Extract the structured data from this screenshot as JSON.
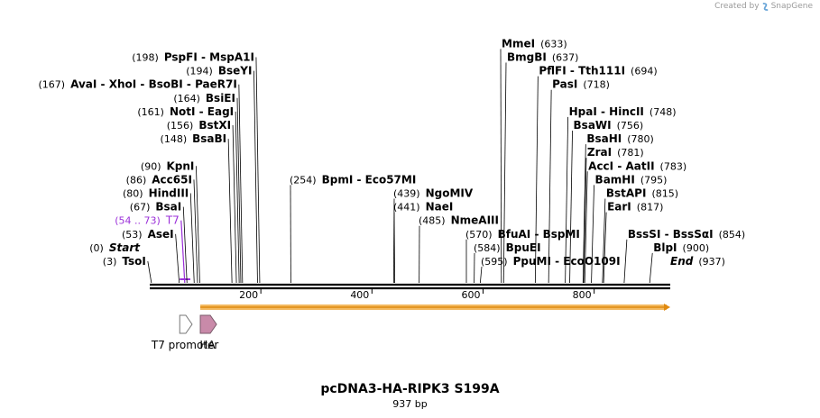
{
  "credit": {
    "prefix": "Created by",
    "brand": "SnapGene"
  },
  "plasmid": {
    "name": "pcDNA3-HA-RIPK3 S199A",
    "length_label": "937 bp",
    "length": 937
  },
  "colors": {
    "accent": "#9b30d9",
    "orf_fill": "#f3b95f",
    "orf_stroke": "#e08a10",
    "ha_fill": "#c98aa9",
    "line": "#7a7a7a"
  },
  "ruler": {
    "ticks": [
      200,
      400,
      600,
      800
    ]
  },
  "sites": [
    {
      "id": "tsoi",
      "names": [
        "TsoI"
      ],
      "pos": "(3)",
      "bp": 3,
      "row": 0,
      "kind": "enzyme"
    },
    {
      "id": "start",
      "names": [
        "Start"
      ],
      "pos": "(0)",
      "bp": 0,
      "row": 1,
      "kind": "terminal"
    },
    {
      "id": "asei",
      "names": [
        "AseI"
      ],
      "pos": "(53)",
      "bp": 53,
      "row": 2,
      "kind": "enzyme"
    },
    {
      "id": "t7",
      "names": [
        "T7"
      ],
      "pos": "(54 .. 73)",
      "bp": 63,
      "row": 3,
      "kind": "primer"
    },
    {
      "id": "bsai",
      "names": [
        "BsaI"
      ],
      "pos": "(67)",
      "bp": 67,
      "row": 4,
      "kind": "enzyme"
    },
    {
      "id": "hindiii",
      "names": [
        "HindIII"
      ],
      "pos": "(80)",
      "bp": 80,
      "row": 5,
      "kind": "enzyme"
    },
    {
      "id": "acc65i",
      "names": [
        "Acc65I"
      ],
      "pos": "(86)",
      "bp": 86,
      "row": 6,
      "kind": "enzyme"
    },
    {
      "id": "kpni",
      "names": [
        "KpnI"
      ],
      "pos": "(90)",
      "bp": 90,
      "row": 7,
      "kind": "enzyme"
    },
    {
      "id": "bsabi",
      "names": [
        "BsaBI"
      ],
      "pos": "(148)",
      "bp": 148,
      "row": 9,
      "kind": "enzyme"
    },
    {
      "id": "bstxi",
      "names": [
        "BstXI"
      ],
      "pos": "(156)",
      "bp": 156,
      "row": 10,
      "kind": "enzyme"
    },
    {
      "id": "notieagi",
      "names": [
        "NotI",
        "EagI"
      ],
      "pos": "(161)",
      "bp": 161,
      "row": 11,
      "kind": "enzyme"
    },
    {
      "id": "bsiei",
      "names": [
        "BsiEI"
      ],
      "pos": "(164)",
      "bp": 164,
      "row": 12,
      "kind": "enzyme"
    },
    {
      "id": "avaigroup",
      "names": [
        "AvaI",
        "XhoI",
        "BsoBI",
        "PaeR7I"
      ],
      "pos": "(167)",
      "bp": 167,
      "row": 13,
      "kind": "enzyme"
    },
    {
      "id": "bseyi",
      "names": [
        "BseYI"
      ],
      "pos": "(194)",
      "bp": 194,
      "row": 14,
      "kind": "enzyme"
    },
    {
      "id": "pspfi",
      "names": [
        "PspFI",
        "MspA1I"
      ],
      "pos": "(198)",
      "bp": 198,
      "row": 15,
      "kind": "enzyme"
    },
    {
      "id": "bpmi",
      "names": [
        "BpmI",
        "Eco57MI"
      ],
      "pos": "(254)",
      "bp": 254,
      "row": 6,
      "kind": "enzyme"
    },
    {
      "id": "ngomiv",
      "names": [
        "NgoMIV"
      ],
      "pos": "(439)",
      "bp": 439,
      "row": 5,
      "kind": "enzyme"
    },
    {
      "id": "naei",
      "names": [
        "NaeI"
      ],
      "pos": "(441)",
      "bp": 441,
      "row": 4,
      "kind": "enzyme"
    },
    {
      "id": "nmeaiii",
      "names": [
        "NmeAIII"
      ],
      "pos": "(485)",
      "bp": 485,
      "row": 3,
      "kind": "enzyme"
    },
    {
      "id": "bfuai",
      "names": [
        "BfuAI",
        "BspMI"
      ],
      "pos": "(570)",
      "bp": 570,
      "row": 2,
      "kind": "enzyme"
    },
    {
      "id": "bpuei",
      "names": [
        "BpuEI"
      ],
      "pos": "(584)",
      "bp": 584,
      "row": 1,
      "kind": "enzyme"
    },
    {
      "id": "ppumi",
      "names": [
        "PpuMI",
        "EcoO109I"
      ],
      "pos": "(595)",
      "bp": 595,
      "row": 0,
      "kind": "enzyme"
    },
    {
      "id": "mmei",
      "names": [
        "MmeI"
      ],
      "pos": "(633)",
      "bp": 633,
      "row": 16,
      "kind": "enzyme"
    },
    {
      "id": "bmgbi",
      "names": [
        "BmgBI"
      ],
      "pos": "(637)",
      "bp": 637,
      "row": 15,
      "kind": "enzyme"
    },
    {
      "id": "pflfi",
      "names": [
        "PflFI",
        "Tth111I"
      ],
      "pos": "(694)",
      "bp": 694,
      "row": 14,
      "kind": "enzyme"
    },
    {
      "id": "pasi",
      "names": [
        "PasI"
      ],
      "pos": "(718)",
      "bp": 718,
      "row": 13,
      "kind": "enzyme"
    },
    {
      "id": "hpai",
      "names": [
        "HpaI",
        "HincII"
      ],
      "pos": "(748)",
      "bp": 748,
      "row": 11,
      "kind": "enzyme"
    },
    {
      "id": "bsawi",
      "names": [
        "BsaWI"
      ],
      "pos": "(756)",
      "bp": 756,
      "row": 10,
      "kind": "enzyme"
    },
    {
      "id": "bsahi",
      "names": [
        "BsaHI"
      ],
      "pos": "(780)",
      "bp": 780,
      "row": 9,
      "kind": "enzyme"
    },
    {
      "id": "zrai",
      "names": [
        "ZraI"
      ],
      "pos": "(781)",
      "bp": 781,
      "row": 8,
      "kind": "enzyme"
    },
    {
      "id": "acci",
      "names": [
        "AccI",
        "AatII"
      ],
      "pos": "(783)",
      "bp": 783,
      "row": 7,
      "kind": "enzyme"
    },
    {
      "id": "bamhi",
      "names": [
        "BamHI"
      ],
      "pos": "(795)",
      "bp": 795,
      "row": 6,
      "kind": "enzyme"
    },
    {
      "id": "bstapi",
      "names": [
        "BstAPI"
      ],
      "pos": "(815)",
      "bp": 815,
      "row": 5,
      "kind": "enzyme"
    },
    {
      "id": "eari",
      "names": [
        "EarI"
      ],
      "pos": "(817)",
      "bp": 817,
      "row": 4,
      "kind": "enzyme"
    },
    {
      "id": "bsssi",
      "names": [
        "BssSI",
        "BssSαI"
      ],
      "pos": "(854)",
      "bp": 854,
      "row": 2,
      "kind": "enzyme"
    },
    {
      "id": "blpi",
      "names": [
        "BlpI"
      ],
      "pos": "(900)",
      "bp": 900,
      "row": 1,
      "kind": "enzyme"
    },
    {
      "id": "end",
      "names": [
        "End"
      ],
      "pos": "(937)",
      "bp": 937,
      "row": 0,
      "kind": "terminal"
    }
  ],
  "features": [
    {
      "id": "t7promoter",
      "label": "T7 promoter",
      "start": 54,
      "end": 73,
      "type": "promoter"
    },
    {
      "id": "ha",
      "label": "HA",
      "start": 91,
      "end": 117,
      "type": "tag"
    }
  ],
  "orf": {
    "start": 91,
    "end": 937
  }
}
